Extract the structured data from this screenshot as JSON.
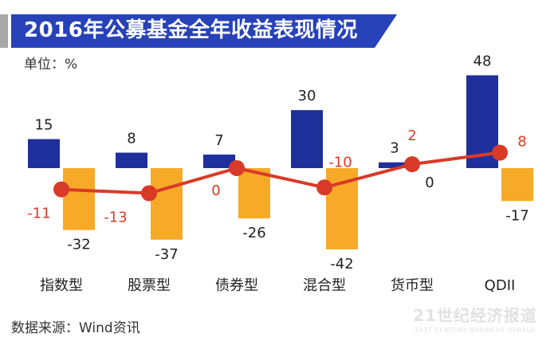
{
  "header": {
    "title": "2016年公募基金全年收益表现情况",
    "unit": "单位：%"
  },
  "footer": {
    "source": "数据来源：Wind资讯",
    "watermark_main": "21世纪经济报道",
    "watermark_sub": "21ST CENTURY BUSINESS HERALD"
  },
  "colors": {
    "banner": "#2742b8",
    "banner_accent": "#a8a8a8",
    "bar_blue": "#1f2f9c",
    "bar_orange": "#f7a928",
    "line_red": "#d93a27",
    "label_red": "#d93a27",
    "label_dark": "#222222"
  },
  "chart_data": {
    "type": "bar",
    "title": "2016年公募基金全年收益表现情况",
    "ylabel": "单位：%",
    "categories": [
      "指数型",
      "股票型",
      "债券型",
      "混合型",
      "货币型",
      "QDII"
    ],
    "series": [
      {
        "type": "bar",
        "color": "#1f2f9c",
        "values": [
          15,
          8,
          7,
          30,
          3,
          48
        ]
      },
      {
        "type": "bar",
        "color": "#f7a928",
        "values": [
          -32,
          -37,
          -26,
          -42,
          0,
          -17
        ]
      },
      {
        "type": "line",
        "color": "#d93a27",
        "values": [
          -11,
          -13,
          0,
          -10,
          2,
          8
        ]
      }
    ],
    "grid": false,
    "legend": "none"
  }
}
